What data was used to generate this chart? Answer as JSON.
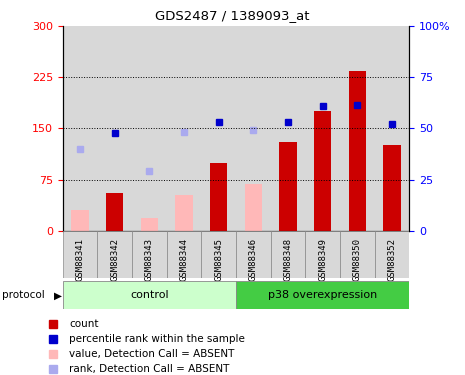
{
  "title": "GDS2487 / 1389093_at",
  "samples": [
    "GSM88341",
    "GSM88342",
    "GSM88343",
    "GSM88344",
    "GSM88345",
    "GSM88346",
    "GSM88348",
    "GSM88349",
    "GSM88350",
    "GSM88352"
  ],
  "control_count": 5,
  "bar_values_present": [
    null,
    55,
    null,
    null,
    100,
    null,
    130,
    175,
    235,
    125
  ],
  "bar_values_absent": [
    30,
    null,
    18,
    52,
    null,
    68,
    null,
    null,
    null,
    null
  ],
  "rank_present": [
    null,
    143,
    null,
    null,
    160,
    null,
    160,
    183,
    185,
    157
  ],
  "rank_absent": [
    120,
    null,
    87,
    145,
    null,
    148,
    null,
    null,
    null,
    null
  ],
  "ylim": [
    0,
    300
  ],
  "yticks_left": [
    0,
    75,
    150,
    225,
    300
  ],
  "ytick_labels_left": [
    "0",
    "75",
    "150",
    "225",
    "300"
  ],
  "ytick_labels_right": [
    "0",
    "25",
    "50",
    "75",
    "100%"
  ],
  "color_bar_present": "#cc0000",
  "color_bar_absent": "#ffb8b8",
  "color_rank_present": "#0000cc",
  "color_rank_absent": "#aaaaee",
  "color_col_bg": "#d8d8d8",
  "color_control_bg": "#ccffcc",
  "color_overexp_bg": "#44cc44",
  "protocol_labels": [
    "control",
    "p38 overexpression"
  ],
  "legend_items": [
    {
      "label": "count",
      "color": "#cc0000"
    },
    {
      "label": "percentile rank within the sample",
      "color": "#0000cc"
    },
    {
      "label": "value, Detection Call = ABSENT",
      "color": "#ffb8b8"
    },
    {
      "label": "rank, Detection Call = ABSENT",
      "color": "#aaaaee"
    }
  ],
  "dotted_lines": [
    75,
    150,
    225
  ],
  "bar_width": 0.5,
  "col_bg_alpha": 1.0
}
